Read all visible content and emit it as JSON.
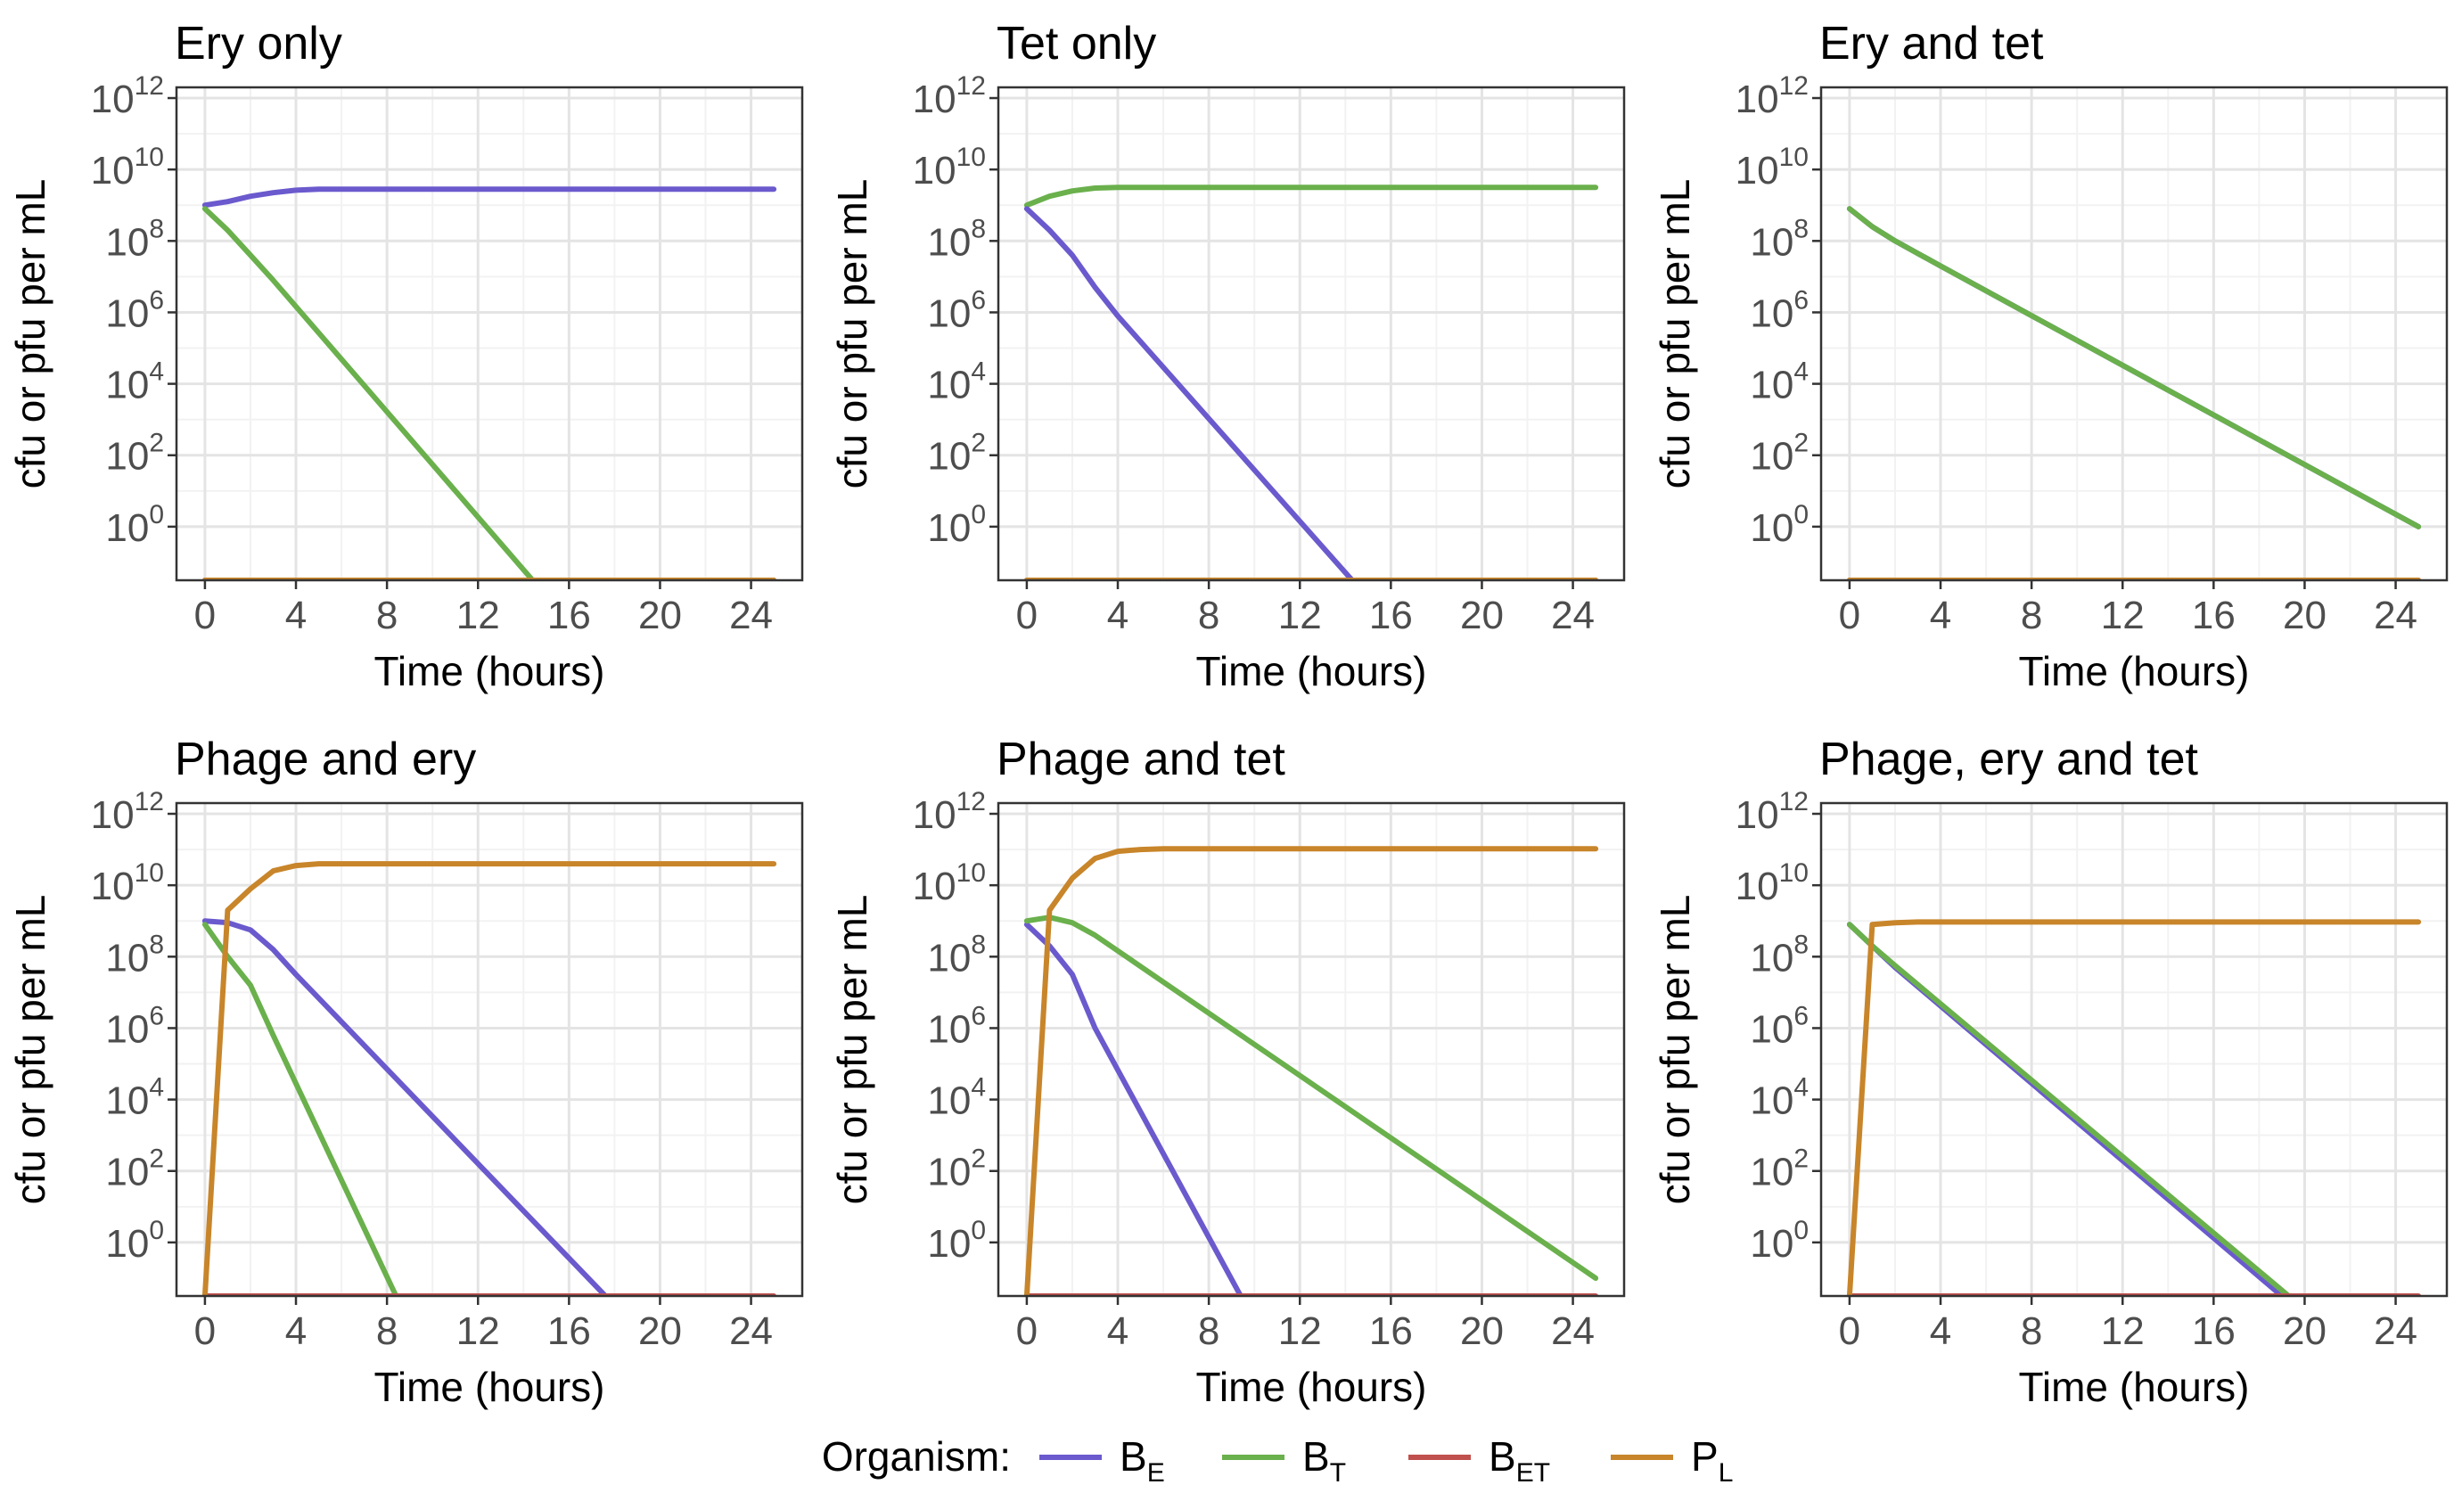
{
  "figure": {
    "legend": {
      "title": "Organism:",
      "entries": [
        {
          "key": "BE",
          "main": "B",
          "sub": "E",
          "color": "#6a5acd"
        },
        {
          "key": "BT",
          "main": "B",
          "sub": "T",
          "color": "#6ab04c"
        },
        {
          "key": "BET",
          "main": "B",
          "sub": "ET",
          "color": "#c0504d"
        },
        {
          "key": "PL",
          "main": "P",
          "sub": "L",
          "color": "#c8852a"
        }
      ]
    }
  },
  "chart_data": [
    {
      "type": "line",
      "title": "Ery only",
      "xlabel": "Time (hours)",
      "ylabel": "cfu or pfu per mL",
      "xlim": [
        -1.25,
        26.25
      ],
      "ylim": [
        -1.5,
        12.3
      ],
      "y_scale": "log10",
      "x_ticks": [
        0,
        4,
        8,
        12,
        16,
        20,
        24
      ],
      "y_tick_exponents": [
        0,
        2,
        4,
        6,
        8,
        10,
        12
      ],
      "grid": true,
      "series": [
        {
          "key": "BE",
          "color": "#6a5acd",
          "x": [
            0,
            1,
            2,
            3,
            4,
            5,
            6,
            25
          ],
          "y_log10": [
            9.0,
            9.1,
            9.25,
            9.35,
            9.42,
            9.45,
            9.45,
            9.45
          ]
        },
        {
          "key": "BT",
          "color": "#6ab04c",
          "x": [
            0,
            1,
            2,
            3,
            14.4
          ],
          "y_log10": [
            8.9,
            8.3,
            7.6,
            6.9,
            -1.5
          ]
        },
        {
          "key": "BET",
          "color": "#c0504d",
          "x": [
            0,
            25
          ],
          "y_log10": [
            -1.5,
            -1.5
          ]
        },
        {
          "key": "PL",
          "color": "#c8852a",
          "x": [
            0,
            25
          ],
          "y_log10": [
            -1.5,
            -1.5
          ]
        }
      ]
    },
    {
      "type": "line",
      "title": "Tet only",
      "xlabel": "Time (hours)",
      "ylabel": "cfu or pfu per mL",
      "xlim": [
        -1.25,
        26.25
      ],
      "ylim": [
        -1.5,
        12.3
      ],
      "y_scale": "log10",
      "x_ticks": [
        0,
        4,
        8,
        12,
        16,
        20,
        24
      ],
      "y_tick_exponents": [
        0,
        2,
        4,
        6,
        8,
        10,
        12
      ],
      "grid": true,
      "series": [
        {
          "key": "BT",
          "color": "#6ab04c",
          "x": [
            0,
            1,
            2,
            3,
            4,
            6,
            25
          ],
          "y_log10": [
            9.0,
            9.25,
            9.4,
            9.48,
            9.5,
            9.5,
            9.5
          ]
        },
        {
          "key": "BE",
          "color": "#6a5acd",
          "x": [
            0,
            1,
            2,
            3,
            4,
            14.3
          ],
          "y_log10": [
            8.9,
            8.3,
            7.6,
            6.7,
            5.9,
            -1.5
          ]
        },
        {
          "key": "BET",
          "color": "#c0504d",
          "x": [
            0,
            25
          ],
          "y_log10": [
            -1.5,
            -1.5
          ]
        },
        {
          "key": "PL",
          "color": "#c8852a",
          "x": [
            0,
            25
          ],
          "y_log10": [
            -1.5,
            -1.5
          ]
        }
      ]
    },
    {
      "type": "line",
      "title": "Ery and tet",
      "xlabel": "Time (hours)",
      "ylabel": "cfu or pfu per mL",
      "xlim": [
        -1.25,
        26.25
      ],
      "ylim": [
        -1.5,
        12.3
      ],
      "y_scale": "log10",
      "x_ticks": [
        0,
        4,
        8,
        12,
        16,
        20,
        24
      ],
      "y_tick_exponents": [
        0,
        2,
        4,
        6,
        8,
        10,
        12
      ],
      "grid": true,
      "series": [
        {
          "key": "BE",
          "color": "#6a5acd",
          "x": [
            0,
            1,
            2,
            4,
            25
          ],
          "y_log10": [
            8.9,
            8.4,
            8.0,
            7.3,
            0.0
          ]
        },
        {
          "key": "BT",
          "color": "#6ab04c",
          "x": [
            0,
            1,
            2,
            4,
            25
          ],
          "y_log10": [
            8.9,
            8.4,
            8.0,
            7.3,
            0.0
          ]
        },
        {
          "key": "BET",
          "color": "#c0504d",
          "x": [
            0,
            25
          ],
          "y_log10": [
            -1.5,
            -1.5
          ]
        },
        {
          "key": "PL",
          "color": "#c8852a",
          "x": [
            0,
            25
          ],
          "y_log10": [
            -1.5,
            -1.5
          ]
        }
      ]
    },
    {
      "type": "line",
      "title": "Phage and ery",
      "xlabel": "Time (hours)",
      "ylabel": "cfu or pfu per mL",
      "xlim": [
        -1.25,
        26.25
      ],
      "ylim": [
        -1.5,
        12.3
      ],
      "y_scale": "log10",
      "x_ticks": [
        0,
        4,
        8,
        12,
        16,
        20,
        24
      ],
      "y_tick_exponents": [
        0,
        2,
        4,
        6,
        8,
        10,
        12
      ],
      "grid": true,
      "series": [
        {
          "key": "BE",
          "color": "#6a5acd",
          "x": [
            0,
            1,
            2,
            3,
            4,
            17.6
          ],
          "y_log10": [
            9.0,
            8.95,
            8.75,
            8.2,
            7.5,
            -1.5
          ]
        },
        {
          "key": "BT",
          "color": "#6ab04c",
          "x": [
            0,
            1,
            2,
            3,
            8.4
          ],
          "y_log10": [
            8.9,
            8.0,
            7.2,
            5.8,
            -1.5
          ]
        },
        {
          "key": "BET",
          "color": "#c0504d",
          "x": [
            0,
            25
          ],
          "y_log10": [
            -1.5,
            -1.5
          ]
        },
        {
          "key": "PL",
          "color": "#c8852a",
          "x": [
            0,
            1,
            2,
            3,
            4,
            5,
            25
          ],
          "y_log10": [
            -1.5,
            9.3,
            9.9,
            10.4,
            10.55,
            10.6,
            10.6
          ]
        }
      ]
    },
    {
      "type": "line",
      "title": "Phage and tet",
      "xlabel": "Time (hours)",
      "ylabel": "cfu or pfu per mL",
      "xlim": [
        -1.25,
        26.25
      ],
      "ylim": [
        -1.5,
        12.3
      ],
      "y_scale": "log10",
      "x_ticks": [
        0,
        4,
        8,
        12,
        16,
        20,
        24
      ],
      "y_tick_exponents": [
        0,
        2,
        4,
        6,
        8,
        10,
        12
      ],
      "grid": true,
      "series": [
        {
          "key": "BE",
          "color": "#6a5acd",
          "x": [
            0,
            1,
            2,
            3,
            9.4
          ],
          "y_log10": [
            8.9,
            8.3,
            7.5,
            6.0,
            -1.5
          ]
        },
        {
          "key": "BT",
          "color": "#6ab04c",
          "x": [
            0,
            1,
            2,
            3,
            25
          ],
          "y_log10": [
            9.0,
            9.1,
            8.95,
            8.6,
            -1.0
          ]
        },
        {
          "key": "BET",
          "color": "#c0504d",
          "x": [
            0,
            25
          ],
          "y_log10": [
            -1.5,
            -1.5
          ]
        },
        {
          "key": "PL",
          "color": "#c8852a",
          "x": [
            0,
            1,
            2,
            3,
            4,
            5,
            6,
            25
          ],
          "y_log10": [
            -1.5,
            9.3,
            10.2,
            10.75,
            10.95,
            11.0,
            11.02,
            11.02
          ]
        }
      ]
    },
    {
      "type": "line",
      "title": "Phage, ery and tet",
      "xlabel": "Time (hours)",
      "ylabel": "cfu or pfu per mL",
      "xlim": [
        -1.25,
        26.25
      ],
      "ylim": [
        -1.5,
        12.3
      ],
      "y_scale": "log10",
      "x_ticks": [
        0,
        4,
        8,
        12,
        16,
        20,
        24
      ],
      "y_tick_exponents": [
        0,
        2,
        4,
        6,
        8,
        10,
        12
      ],
      "grid": true,
      "series": [
        {
          "key": "BE",
          "color": "#6a5acd",
          "x": [
            0,
            1,
            2,
            19.0
          ],
          "y_log10": [
            8.9,
            8.3,
            7.7,
            -1.5
          ]
        },
        {
          "key": "BT",
          "color": "#6ab04c",
          "x": [
            0,
            1,
            2,
            19.3
          ],
          "y_log10": [
            8.9,
            8.3,
            7.75,
            -1.5
          ]
        },
        {
          "key": "BET",
          "color": "#c0504d",
          "x": [
            0,
            25
          ],
          "y_log10": [
            -1.5,
            -1.5
          ]
        },
        {
          "key": "PL",
          "color": "#c8852a",
          "x": [
            0,
            1,
            2,
            3,
            25
          ],
          "y_log10": [
            -1.5,
            8.9,
            8.95,
            8.97,
            8.97
          ]
        }
      ]
    }
  ]
}
